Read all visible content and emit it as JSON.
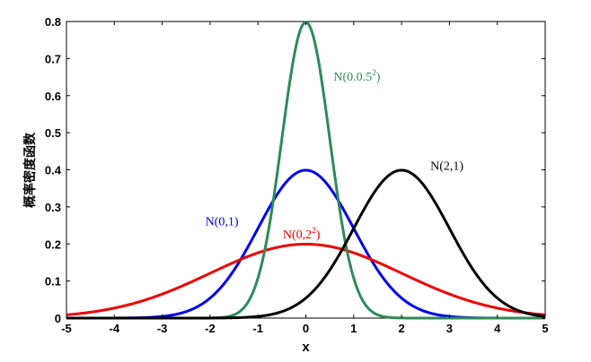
{
  "chart_data": {
    "type": "line",
    "title": "",
    "xlabel": "x",
    "ylabel": "概率密度函数",
    "xlim": [
      -5,
      5
    ],
    "ylim": [
      0,
      0.8
    ],
    "xticks": [
      "-5",
      "-4",
      "-3",
      "-2",
      "-1",
      "0",
      "1",
      "2",
      "3",
      "4",
      "5"
    ],
    "yticks": [
      "0",
      "0.1",
      "0.2",
      "0.3",
      "0.4",
      "0.5",
      "0.6",
      "0.7",
      "0.8"
    ],
    "grid": false,
    "legend": "none",
    "series": [
      {
        "mu": 0,
        "sigma": 1,
        "color": "#0000ee"
      },
      {
        "mu": 0,
        "sigma": 2,
        "color": "#ee0000"
      },
      {
        "mu": 0,
        "sigma": 0.5,
        "color": "#2e8b57"
      },
      {
        "mu": 2,
        "sigma": 1,
        "color": "#000000"
      }
    ],
    "annotations": [
      {
        "text": "N(0,1)",
        "sup": "",
        "x": -2.1,
        "y": 0.25,
        "color": "#0000ee"
      },
      {
        "text": "N(0,2",
        "sup": "2",
        "tail": ")",
        "x": -0.48,
        "y": 0.215,
        "color": "#ee0000"
      },
      {
        "text": "N(0.0.5",
        "sup": "2",
        "tail": ")",
        "x": 0.58,
        "y": 0.64,
        "color": "#2e8b57"
      },
      {
        "text": "N(2,1)",
        "sup": "",
        "x": 2.6,
        "y": 0.4,
        "color": "#000000"
      }
    ]
  }
}
